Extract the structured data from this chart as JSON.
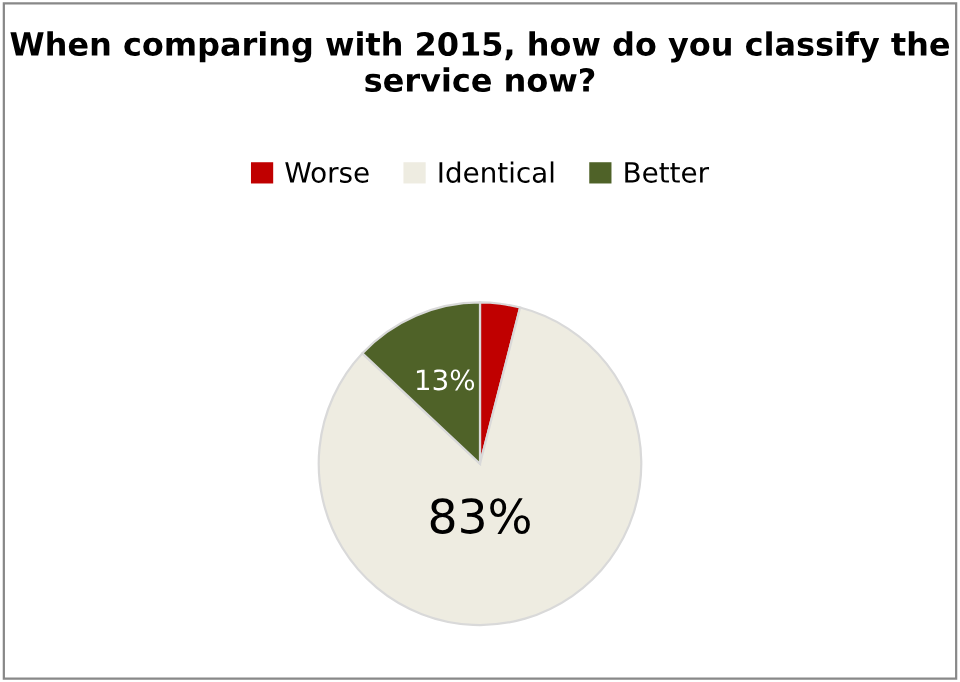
{
  "chart_data": {
    "type": "pie",
    "title": "When comparing with 2015, how do you classify the service now?",
    "categories": [
      "Worse",
      "Identical",
      "Better"
    ],
    "values": [
      4,
      83,
      13
    ],
    "colors": [
      "#c00000",
      "#eeece1",
      "#4f6228"
    ],
    "value_labels": [
      null,
      "83%",
      "13%"
    ],
    "legend": "top"
  }
}
